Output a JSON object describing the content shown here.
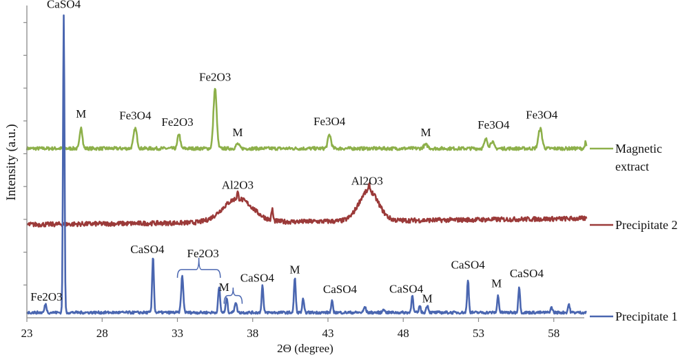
{
  "chart_data": {
    "type": "line",
    "title": "",
    "xlabel": "2Θ (degree)",
    "ylabel": "Intensity (a.u.)",
    "xlim": [
      23,
      60.2
    ],
    "ylim": [
      0,
      9.5
    ],
    "xticks": [
      23,
      28,
      33,
      38,
      43,
      48,
      53,
      58
    ],
    "yticks": [
      0,
      1,
      2,
      3,
      4,
      5,
      6,
      7,
      8,
      9
    ],
    "ytick_labels_shown": false,
    "grid": false,
    "legend_placement": "right",
    "series": [
      {
        "name": "Magnetic extract",
        "legend_lines": [
          "Magnetic",
          "extract"
        ],
        "color": "#8db04a",
        "baseline": 5.16,
        "noise": 0.05,
        "broad": [],
        "peaks": [
          {
            "x": 26.6,
            "y": 5.83,
            "w": 0.12
          },
          {
            "x": 30.2,
            "y": 5.77,
            "w": 0.16
          },
          {
            "x": 33.1,
            "y": 5.62,
            "w": 0.12
          },
          {
            "x": 35.5,
            "y": 6.99,
            "w": 0.15
          },
          {
            "x": 37.0,
            "y": 5.3,
            "w": 0.15
          },
          {
            "x": 43.1,
            "y": 5.58,
            "w": 0.15
          },
          {
            "x": 49.5,
            "y": 5.27,
            "w": 0.2
          },
          {
            "x": 53.5,
            "y": 5.44,
            "w": 0.15
          },
          {
            "x": 53.9,
            "y": 5.38,
            "w": 0.15
          },
          {
            "x": 57.1,
            "y": 5.77,
            "w": 0.17
          },
          {
            "x": 60.1,
            "y": 5.34,
            "w": 0.06
          }
        ]
      },
      {
        "name": "Precipitate 2",
        "legend_lines": [
          "Precipitate 2"
        ],
        "color": "#9b3a39",
        "baseline": 2.84,
        "noise": 0.07,
        "slope": 0.005,
        "broad": [
          {
            "x": 37.0,
            "y": 0.72,
            "w": 1.4
          },
          {
            "x": 45.7,
            "y": 0.92,
            "w": 0.9
          }
        ],
        "peaks": [
          {
            "x": 37.0,
            "y": 0.2,
            "w": 0.06
          },
          {
            "x": 39.3,
            "y": 0.35,
            "w": 0.07
          },
          {
            "x": 45.75,
            "y": 0.18,
            "w": 0.06
          }
        ]
      },
      {
        "name": "Precipitate 1",
        "legend_lines": [
          "Precipitate 1"
        ],
        "color": "#4a66b0",
        "baseline": 0.16,
        "noise": 0.04,
        "broad": [],
        "peaks": [
          {
            "x": 24.24,
            "y": 0.42,
            "w": 0.09
          },
          {
            "x": 25.45,
            "y": 9.2,
            "w": 0.07
          },
          {
            "x": 31.38,
            "y": 1.88,
            "w": 0.08
          },
          {
            "x": 33.32,
            "y": 1.26,
            "w": 0.1
          },
          {
            "x": 35.77,
            "y": 0.92,
            "w": 0.09
          },
          {
            "x": 36.27,
            "y": 0.63,
            "w": 0.08
          },
          {
            "x": 36.87,
            "y": 0.48,
            "w": 0.1
          },
          {
            "x": 38.65,
            "y": 0.99,
            "w": 0.08
          },
          {
            "x": 40.8,
            "y": 1.24,
            "w": 0.08
          },
          {
            "x": 41.35,
            "y": 0.57,
            "w": 0.08
          },
          {
            "x": 43.27,
            "y": 0.5,
            "w": 0.08
          },
          {
            "x": 45.45,
            "y": 0.33,
            "w": 0.1
          },
          {
            "x": 46.7,
            "y": 0.29,
            "w": 0.08
          },
          {
            "x": 48.6,
            "y": 0.71,
            "w": 0.08
          },
          {
            "x": 49.1,
            "y": 0.4,
            "w": 0.07
          },
          {
            "x": 49.6,
            "y": 0.38,
            "w": 0.1
          },
          {
            "x": 52.3,
            "y": 1.17,
            "w": 0.08
          },
          {
            "x": 54.3,
            "y": 0.69,
            "w": 0.08
          },
          {
            "x": 55.7,
            "y": 0.96,
            "w": 0.08
          },
          {
            "x": 57.85,
            "y": 0.31,
            "w": 0.1
          },
          {
            "x": 59.0,
            "y": 0.42,
            "w": 0.08
          }
        ]
      }
    ],
    "annotations": [
      {
        "text": "CaSO4",
        "x": 25.45,
        "y": 9.45
      },
      {
        "text": "M",
        "x": 26.6,
        "y": 6.1
      },
      {
        "text": "Fe3O4",
        "x": 30.2,
        "y": 6.05
      },
      {
        "text": "Fe2O3",
        "x": 33.0,
        "y": 5.85
      },
      {
        "text": "Fe2O3",
        "x": 35.5,
        "y": 7.22
      },
      {
        "text": "M",
        "x": 37.0,
        "y": 5.53
      },
      {
        "text": "Fe3O4",
        "x": 43.1,
        "y": 5.87
      },
      {
        "text": "M",
        "x": 49.5,
        "y": 5.53
      },
      {
        "text": "Fe3O4",
        "x": 54.0,
        "y": 5.77
      },
      {
        "text": "Fe3O4",
        "x": 57.2,
        "y": 6.07
      },
      {
        "text": "Al2O3",
        "x": 37.0,
        "y": 3.93
      },
      {
        "text": "Al2O3",
        "x": 45.6,
        "y": 4.06
      },
      {
        "text": "Fe2O3",
        "x": 24.3,
        "y": 0.52
      },
      {
        "text": "CaSO4",
        "x": 31.0,
        "y": 1.97
      },
      {
        "text": "Fe2O3",
        "x": 34.7,
        "y": 1.85
      },
      {
        "text": "M",
        "x": 36.1,
        "y": 0.82
      },
      {
        "text": "CaSO4",
        "x": 38.3,
        "y": 1.1
      },
      {
        "text": "M",
        "x": 40.8,
        "y": 1.35
      },
      {
        "text": "CaSO4",
        "x": 43.8,
        "y": 0.75
      },
      {
        "text": "CaSO4",
        "x": 48.2,
        "y": 0.77
      },
      {
        "text": "M",
        "x": 49.6,
        "y": 0.47
      },
      {
        "text": "CaSO4",
        "x": 52.3,
        "y": 1.5
      },
      {
        "text": "M",
        "x": 54.2,
        "y": 0.93
      },
      {
        "text": "CaSO4",
        "x": 56.2,
        "y": 1.24
      }
    ],
    "brackets": [
      {
        "label": "Fe2O3",
        "x0": 33.0,
        "x1": 35.85,
        "y": 1.47,
        "apex": 1.83
      },
      {
        "label": "M",
        "x0": 36.1,
        "x1": 37.3,
        "y": 0.68,
        "apex": 0.92
      }
    ]
  }
}
